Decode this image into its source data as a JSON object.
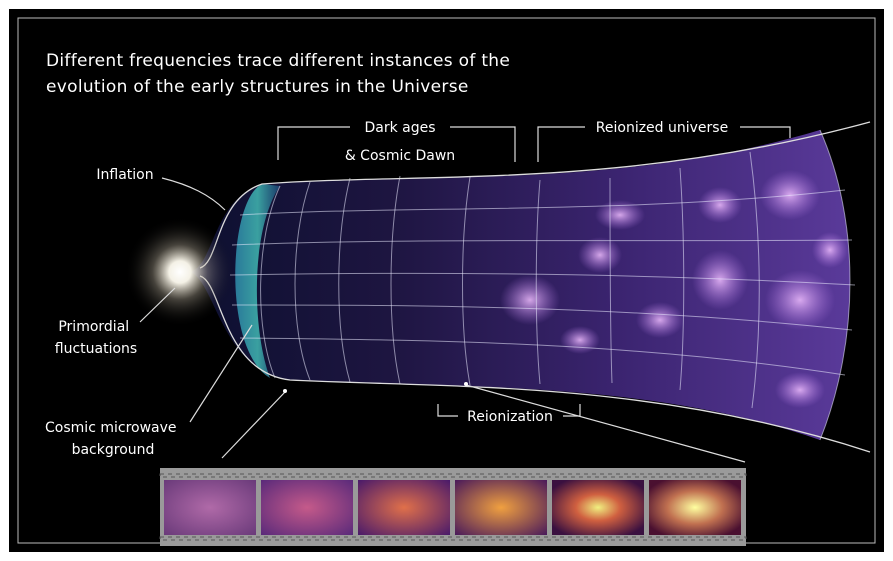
{
  "title": {
    "lines": [
      "Different frequencies trace different instances of the",
      "evolution of the early structures in the Universe"
    ]
  },
  "labels": {
    "dark_ages": "Dark ages",
    "cosmic_dawn": "& Cosmic Dawn",
    "reionized_universe": "Reionized universe",
    "inflation": "Inflation",
    "primordial_fluctuations": [
      "Primordial",
      "fluctuations"
    ],
    "cosmic_microwave_background": [
      "Cosmic microwave",
      "background"
    ],
    "reionization": "Reionization"
  }
}
